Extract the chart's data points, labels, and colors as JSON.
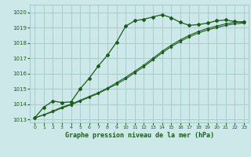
{
  "title": "Graphe pression niveau de la mer (hPa)",
  "bg_color": "#cce8e8",
  "grid_color": "#aacccc",
  "line_color": "#1a5c1a",
  "xlim": [
    -0.5,
    23.5
  ],
  "ylim": [
    1012.8,
    1020.5
  ],
  "yticks": [
    1013,
    1014,
    1015,
    1016,
    1017,
    1018,
    1019,
    1020
  ],
  "xticks": [
    0,
    1,
    2,
    3,
    4,
    5,
    6,
    7,
    8,
    9,
    10,
    11,
    12,
    13,
    14,
    15,
    16,
    17,
    18,
    19,
    20,
    21,
    22,
    23
  ],
  "series1_x": [
    0,
    1,
    2,
    3,
    4,
    5,
    6,
    7,
    8,
    9,
    10,
    11,
    12,
    13,
    14,
    15,
    16,
    17,
    18,
    19,
    20,
    21,
    22,
    23
  ],
  "series1_y": [
    1013.1,
    1013.8,
    1014.2,
    1014.1,
    1014.15,
    1015.0,
    1015.7,
    1016.5,
    1017.2,
    1018.05,
    1019.1,
    1019.45,
    1019.55,
    1019.7,
    1019.85,
    1019.65,
    1019.35,
    1019.15,
    1019.2,
    1019.3,
    1019.45,
    1019.5,
    1019.4,
    1019.35
  ],
  "series2_x": [
    0,
    1,
    2,
    3,
    4,
    5,
    6,
    7,
    8,
    9,
    10,
    11,
    12,
    13,
    14,
    15,
    16,
    17,
    18,
    19,
    20,
    21,
    22,
    23
  ],
  "series2_y": [
    1013.1,
    1013.3,
    1013.55,
    1013.8,
    1014.0,
    1014.25,
    1014.5,
    1014.75,
    1015.05,
    1015.4,
    1015.75,
    1016.15,
    1016.55,
    1017.0,
    1017.45,
    1017.85,
    1018.2,
    1018.5,
    1018.75,
    1018.95,
    1019.1,
    1019.25,
    1019.35,
    1019.4
  ],
  "series3_x": [
    0,
    1,
    2,
    3,
    4,
    5,
    6,
    7,
    8,
    9,
    10,
    11,
    12,
    13,
    14,
    15,
    16,
    17,
    18,
    19,
    20,
    21,
    22,
    23
  ],
  "series3_y": [
    1013.1,
    1013.3,
    1013.5,
    1013.75,
    1013.95,
    1014.2,
    1014.45,
    1014.7,
    1015.0,
    1015.3,
    1015.65,
    1016.05,
    1016.45,
    1016.9,
    1017.35,
    1017.75,
    1018.1,
    1018.4,
    1018.65,
    1018.85,
    1019.0,
    1019.15,
    1019.25,
    1019.3
  ]
}
